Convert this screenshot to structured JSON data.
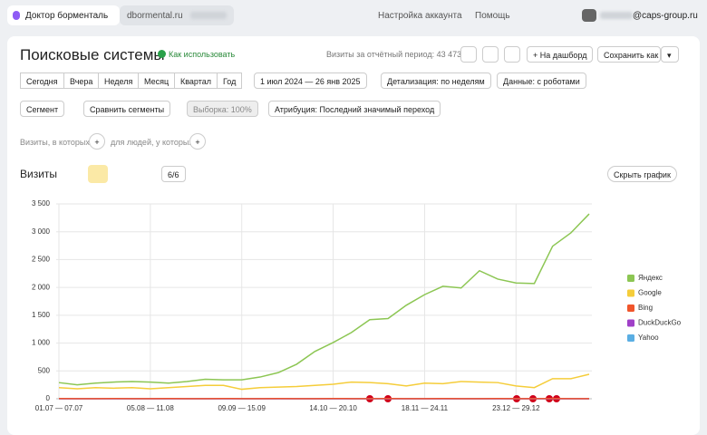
{
  "topbar": {
    "counter": "Доктор борменталь",
    "site": "dbormental.ru",
    "links": [
      "Настройка аккаунта",
      "Помощь"
    ],
    "user": "@caps-group.ru"
  },
  "report": {
    "title": "Поисковые системы",
    "help_link": "Как использовать",
    "total": "Визиты за отчётный период: 43 473",
    "actions": [
      "На дашборд",
      "Сохранить как"
    ],
    "periods": [
      "Сегодня",
      "Вчера",
      "Неделя",
      "Месяц",
      "Квартал",
      "Год"
    ],
    "date_range": "1 июл 2024 — 26 янв 2025",
    "detail": "Детализация: по неделям",
    "data_mode": "Данные: с роботами",
    "segment": "Сегмент",
    "compare": "Сравнить сегменты",
    "sample": "Выборка: 100%",
    "attribution": "Атрибуция: Последний значимый переход",
    "filter_visits": "Визиты, в которых",
    "filter_people": "для людей, у которых",
    "chart_label": "Визиты",
    "series_count": "6/6",
    "hide_chart": "Скрыть график"
  },
  "chart_data": {
    "type": "line",
    "legend": "right",
    "grid": true,
    "categories": [
      "01.07 — 07.07",
      null,
      null,
      null,
      null,
      "05.08 — 11.08",
      null,
      null,
      null,
      null,
      "09.09 — 15.09",
      null,
      null,
      null,
      null,
      "14.10 — 20.10",
      null,
      null,
      null,
      null,
      "18.11 — 24.11",
      null,
      null,
      null,
      null,
      "23.12 — 29.12",
      null,
      null,
      null,
      null
    ],
    "ylim": [
      0,
      3500
    ],
    "yticks": [
      0,
      500,
      {
        "value": 1000,
        "label": "1 000"
      },
      {
        "value": 1500,
        "label": "1 500"
      },
      {
        "value": 2000,
        "label": "2 000"
      },
      {
        "value": 2500,
        "label": "2 500"
      },
      {
        "value": 3000,
        "label": "3 000"
      },
      {
        "value": 3500,
        "label": "3 500"
      }
    ],
    "series": [
      {
        "name": "Яндекс",
        "color": "#8cc653",
        "values": [
          290,
          250,
          280,
          300,
          310,
          300,
          280,
          310,
          350,
          340,
          340,
          390,
          470,
          620,
          850,
          1010,
          1190,
          1420,
          1440,
          1680,
          1870,
          2020,
          1990,
          2300,
          2150,
          2080,
          2070,
          2740,
          2980,
          3320
        ]
      },
      {
        "name": "Google",
        "color": "#f5cd3a",
        "values": [
          200,
          180,
          200,
          190,
          200,
          180,
          200,
          220,
          240,
          240,
          170,
          200,
          210,
          220,
          240,
          260,
          300,
          290,
          270,
          230,
          280,
          270,
          310,
          300,
          290,
          230,
          200,
          360,
          360,
          440
        ]
      },
      {
        "name": "Bing",
        "color": "#f0552b",
        "values": [
          4,
          3,
          3,
          4,
          3,
          3,
          4,
          3,
          3,
          4,
          3,
          3,
          4,
          3,
          3,
          4,
          3,
          3,
          4,
          3,
          3,
          4,
          3,
          3,
          4,
          3,
          3,
          4,
          3,
          3
        ]
      },
      {
        "name": "DuckDuckGo",
        "color": "#a040c8",
        "values": [
          1,
          1,
          1,
          1,
          1,
          1,
          1,
          1,
          1,
          1,
          1,
          1,
          1,
          1,
          1,
          1,
          1,
          1,
          1,
          1,
          1,
          1,
          1,
          1,
          1,
          1,
          1,
          1,
          1,
          1
        ]
      },
      {
        "name": "Yahoo",
        "color": "#5aaee3",
        "values": [
          1,
          0,
          1,
          0,
          1,
          0,
          1,
          0,
          1,
          0,
          1,
          0,
          1,
          0,
          1,
          0,
          1,
          0,
          1,
          0,
          1,
          0,
          1,
          0,
          1,
          0,
          1,
          0,
          1,
          0
        ]
      }
    ]
  }
}
